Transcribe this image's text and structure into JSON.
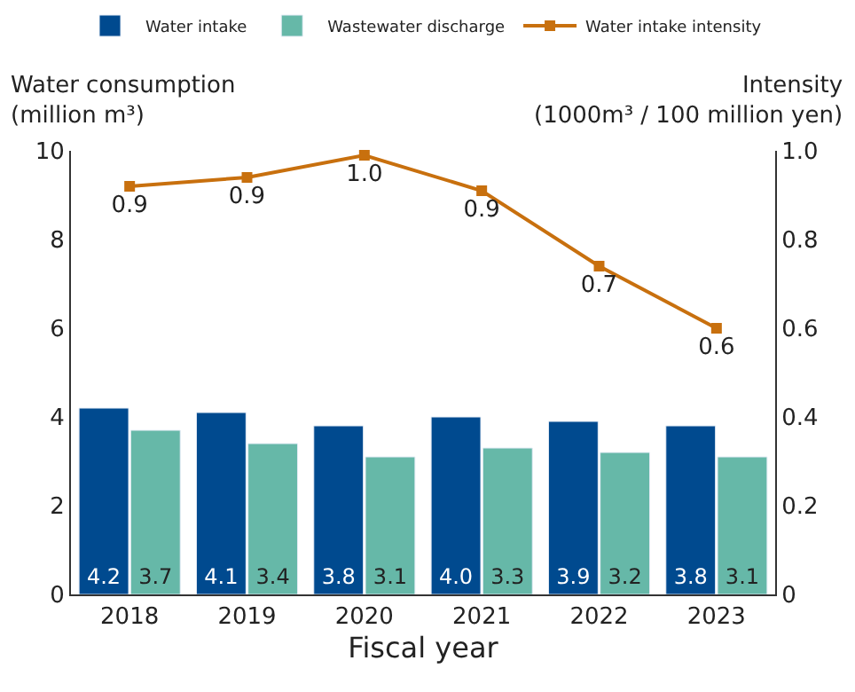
{
  "chart_data": {
    "type": "bar",
    "ylabel": "Water consumption\n(million m³)",
    "y2label": "Intensity\n(1000m³ / 100 million yen)",
    "xlabel": "Fiscal year",
    "categories": [
      "2018",
      "2019",
      "2020",
      "2021",
      "2022",
      "2023"
    ],
    "series": [
      {
        "name": "Water intake",
        "color": "#004a8f",
        "values": [
          4.2,
          4.1,
          3.8,
          4.0,
          3.9,
          3.8
        ],
        "value_labels": [
          "4.2",
          "4.1",
          "3.8",
          "4.0",
          "3.9",
          "3.8"
        ]
      },
      {
        "name": "Wastewater discharge",
        "color": "#66b8a8",
        "values": [
          3.7,
          3.4,
          3.1,
          3.3,
          3.2,
          3.1
        ],
        "value_labels": [
          "3.7",
          "3.4",
          "3.1",
          "3.3",
          "3.2",
          "3.1"
        ]
      },
      {
        "name": "Water intake intensity",
        "type": "line",
        "axis": "y2",
        "color": "#c8700e",
        "marker": "square",
        "values": [
          0.92,
          0.94,
          0.99,
          0.91,
          0.74,
          0.6
        ],
        "value_labels": [
          "0.9",
          "0.9",
          "1.0",
          "0.9",
          "0.7",
          "0.6"
        ]
      }
    ],
    "ylim": [
      0,
      10
    ],
    "yticks": [
      0,
      2,
      4,
      6,
      8,
      10
    ],
    "y2lim": [
      0,
      1.0
    ],
    "y2ticks": [
      0,
      {
        "value": 0.2,
        "label": "0.2"
      },
      {
        "value": 0.4,
        "label": "0.4"
      },
      {
        "value": 0.6,
        "label": "0.6"
      },
      {
        "value": 0.8,
        "label": "0.8"
      },
      {
        "value": 1.0,
        "label": "1.0"
      }
    ],
    "legend": "top"
  }
}
